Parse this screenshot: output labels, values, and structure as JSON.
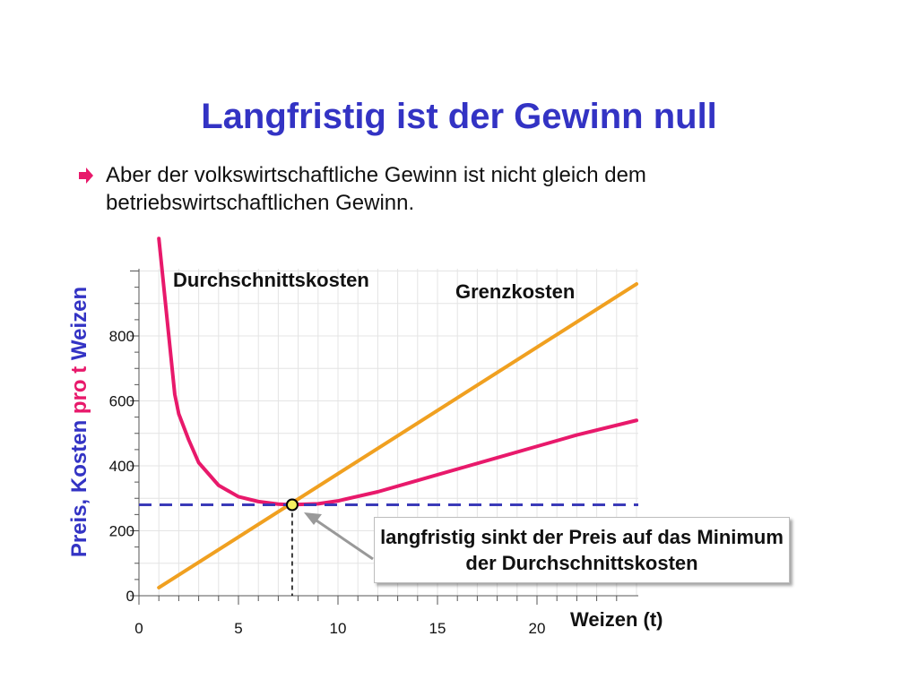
{
  "slide": {
    "title": "Langfristig ist der Gewinn null",
    "bullet": "Aber der volkswirtschaftliche Gewinn ist nicht gleich dem betriebswirtschaftlichen Gewinn.",
    "bullet_icon": "arrow-right-icon"
  },
  "colors": {
    "title": "#3333c4",
    "average_cost": "#e8196b",
    "marginal_cost": "#f0a020",
    "price_line": "#3a3ab8",
    "ylabel_pink": "#e8196b",
    "ylabel_blue": "#3333c4"
  },
  "chart_data": {
    "type": "line",
    "xlabel": "Weizen (t)",
    "ylabel_parts": [
      "Preis",
      ", Kosten ",
      "pro t",
      " Weizen"
    ],
    "xlim": [
      0,
      24
    ],
    "ylim": [
      0,
      1000
    ],
    "x_ticks": [
      "0",
      "5",
      "10",
      "15",
      "20"
    ],
    "y_ticks": [
      "0",
      "200",
      "400",
      "600",
      "800"
    ],
    "grid": true,
    "series": [
      {
        "name": "Durchschnittskosten",
        "x": [
          1,
          1.5,
          1.8,
          2,
          2.5,
          3,
          4,
          5,
          6,
          7,
          7.7,
          8,
          9,
          10,
          12,
          14,
          16,
          18,
          20,
          22,
          25
        ],
        "y": [
          1100,
          800,
          620,
          560,
          480,
          410,
          340,
          305,
          290,
          282,
          280,
          281,
          283,
          292,
          320,
          355,
          390,
          425,
          460,
          495,
          540
        ]
      },
      {
        "name": "Grenzkosten",
        "x": [
          1,
          25
        ],
        "y": [
          25,
          960
        ]
      }
    ],
    "price_level": 280,
    "min_point": {
      "x": 7.7,
      "y": 280
    },
    "annotation": "langfristig sinkt der Preis auf das Minimum der Durchschnittskosten"
  }
}
